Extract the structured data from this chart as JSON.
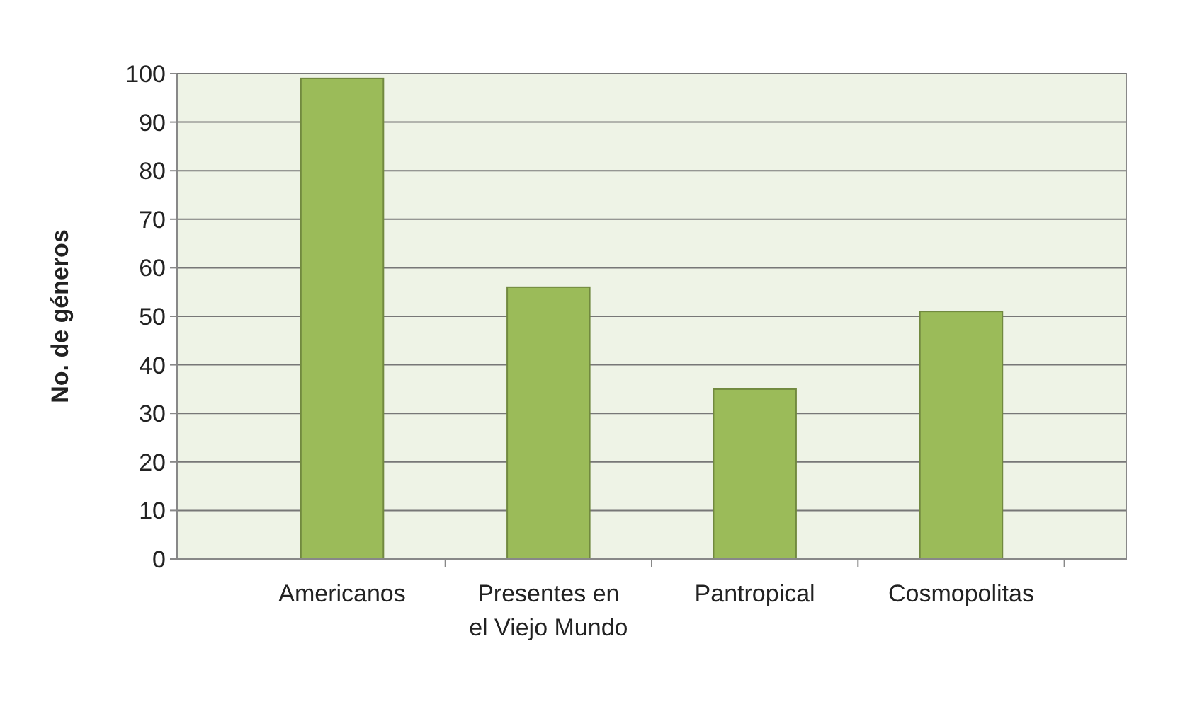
{
  "chart_data": {
    "type": "bar",
    "ylabel": "No. de géneros",
    "categories": [
      "Americanos",
      "Presentes en el Viejo Mundo",
      "Pantropical",
      "Cosmopolitas"
    ],
    "values": [
      99,
      56,
      35,
      51
    ],
    "color": "#9bbb59",
    "ylim": [
      0,
      100
    ],
    "yticks": [
      0,
      10,
      20,
      30,
      40,
      50,
      60,
      70,
      80,
      90,
      100
    ],
    "grid": "y"
  }
}
